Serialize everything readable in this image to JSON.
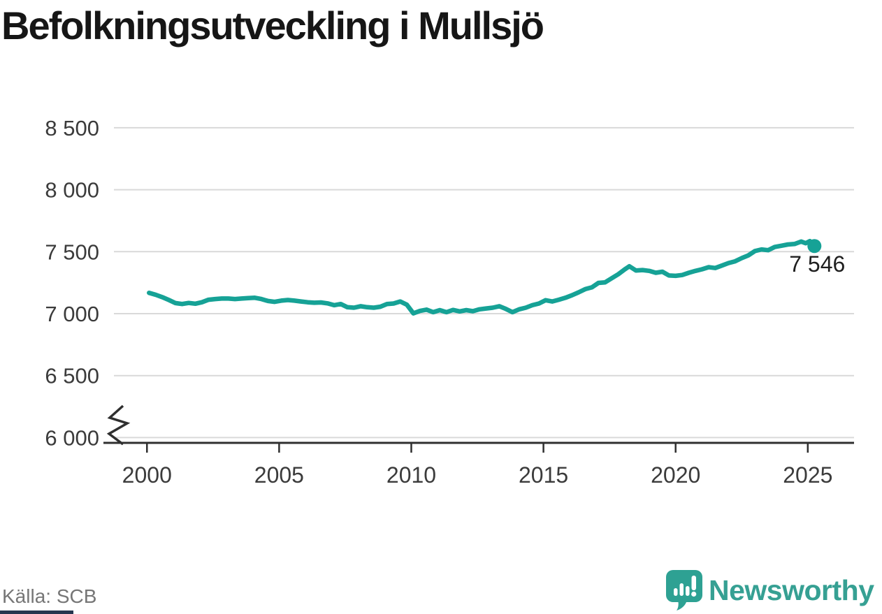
{
  "header": {
    "title": "Befolkningsutveckling i Mullsjö"
  },
  "footer": {
    "source_label": "Källa: SCB",
    "brand_name": "Newsworthy"
  },
  "colors": {
    "line": "#16a296",
    "brand_teal": "#2ea193",
    "accent_bar": "#24364f",
    "gridline": "#d9d9d9",
    "axis": "#2f2f2f",
    "tick_label": "#3b3b3b",
    "end_label": "#1f1f1f"
  },
  "chart_data": {
    "type": "line",
    "title": "Befolkningsutveckling i Mullsjö",
    "xlabel": "",
    "ylabel": "",
    "ylim": [
      6000,
      8500
    ],
    "xlim": [
      1998.75,
      2026.75
    ],
    "axis_break_at_bottom": true,
    "grid": "horizontal",
    "legend": "none",
    "end_label": "7 546",
    "end_value": 7546,
    "y_ticks": [
      {
        "value": 6000,
        "label": "6 000"
      },
      {
        "value": 6500,
        "label": "6 500"
      },
      {
        "value": 7000,
        "label": "7 000"
      },
      {
        "value": 7500,
        "label": "7 500"
      },
      {
        "value": 8000,
        "label": "8 000"
      },
      {
        "value": 8500,
        "label": "8 500"
      }
    ],
    "x_ticks": [
      {
        "value": 2000,
        "label": "2000"
      },
      {
        "value": 2005,
        "label": "2005"
      },
      {
        "value": 2010,
        "label": "2010"
      },
      {
        "value": 2015,
        "label": "2015"
      },
      {
        "value": 2020,
        "label": "2020"
      },
      {
        "value": 2025,
        "label": "2025"
      }
    ],
    "series": [
      {
        "color": "#16a296",
        "points": [
          [
            2000.08,
            7168
          ],
          [
            2000.33,
            7152
          ],
          [
            2000.58,
            7133
          ],
          [
            2000.83,
            7110
          ],
          [
            2001.08,
            7085
          ],
          [
            2001.33,
            7078
          ],
          [
            2001.58,
            7086
          ],
          [
            2001.83,
            7080
          ],
          [
            2002.08,
            7092
          ],
          [
            2002.33,
            7112
          ],
          [
            2002.58,
            7118
          ],
          [
            2002.83,
            7122
          ],
          [
            2003.08,
            7122
          ],
          [
            2003.33,
            7118
          ],
          [
            2003.58,
            7122
          ],
          [
            2003.83,
            7126
          ],
          [
            2004.08,
            7128
          ],
          [
            2004.33,
            7118
          ],
          [
            2004.58,
            7102
          ],
          [
            2004.83,
            7095
          ],
          [
            2005.08,
            7105
          ],
          [
            2005.33,
            7110
          ],
          [
            2005.58,
            7105
          ],
          [
            2005.83,
            7098
          ],
          [
            2006.08,
            7092
          ],
          [
            2006.33,
            7088
          ],
          [
            2006.58,
            7090
          ],
          [
            2006.83,
            7083
          ],
          [
            2007.08,
            7068
          ],
          [
            2007.33,
            7078
          ],
          [
            2007.58,
            7052
          ],
          [
            2007.83,
            7048
          ],
          [
            2008.08,
            7060
          ],
          [
            2008.33,
            7052
          ],
          [
            2008.58,
            7048
          ],
          [
            2008.83,
            7056
          ],
          [
            2009.08,
            7078
          ],
          [
            2009.33,
            7082
          ],
          [
            2009.58,
            7098
          ],
          [
            2009.83,
            7072
          ],
          [
            2010.08,
            7002
          ],
          [
            2010.33,
            7022
          ],
          [
            2010.58,
            7032
          ],
          [
            2010.83,
            7012
          ],
          [
            2011.08,
            7028
          ],
          [
            2011.33,
            7012
          ],
          [
            2011.58,
            7030
          ],
          [
            2011.83,
            7018
          ],
          [
            2012.08,
            7028
          ],
          [
            2012.33,
            7020
          ],
          [
            2012.58,
            7035
          ],
          [
            2012.83,
            7042
          ],
          [
            2013.08,
            7048
          ],
          [
            2013.33,
            7060
          ],
          [
            2013.58,
            7038
          ],
          [
            2013.83,
            7012
          ],
          [
            2014.08,
            7035
          ],
          [
            2014.33,
            7048
          ],
          [
            2014.58,
            7068
          ],
          [
            2014.83,
            7082
          ],
          [
            2015.08,
            7108
          ],
          [
            2015.33,
            7098
          ],
          [
            2015.58,
            7112
          ],
          [
            2015.83,
            7128
          ],
          [
            2016.08,
            7148
          ],
          [
            2016.33,
            7172
          ],
          [
            2016.58,
            7198
          ],
          [
            2016.83,
            7212
          ],
          [
            2017.08,
            7248
          ],
          [
            2017.33,
            7252
          ],
          [
            2017.58,
            7285
          ],
          [
            2017.83,
            7318
          ],
          [
            2018.08,
            7358
          ],
          [
            2018.25,
            7382
          ],
          [
            2018.5,
            7348
          ],
          [
            2018.75,
            7352
          ],
          [
            2019.0,
            7345
          ],
          [
            2019.25,
            7330
          ],
          [
            2019.5,
            7338
          ],
          [
            2019.75,
            7308
          ],
          [
            2020.0,
            7305
          ],
          [
            2020.25,
            7312
          ],
          [
            2020.5,
            7330
          ],
          [
            2020.75,
            7345
          ],
          [
            2021.0,
            7358
          ],
          [
            2021.25,
            7375
          ],
          [
            2021.5,
            7368
          ],
          [
            2021.75,
            7388
          ],
          [
            2022.0,
            7408
          ],
          [
            2022.25,
            7422
          ],
          [
            2022.5,
            7448
          ],
          [
            2022.75,
            7470
          ],
          [
            2023.0,
            7505
          ],
          [
            2023.25,
            7518
          ],
          [
            2023.5,
            7512
          ],
          [
            2023.75,
            7538
          ],
          [
            2024.0,
            7548
          ],
          [
            2024.25,
            7558
          ],
          [
            2024.5,
            7562
          ],
          [
            2024.75,
            7582
          ],
          [
            2024.92,
            7568
          ],
          [
            2025.08,
            7585
          ],
          [
            2025.25,
            7546
          ]
        ]
      }
    ]
  }
}
